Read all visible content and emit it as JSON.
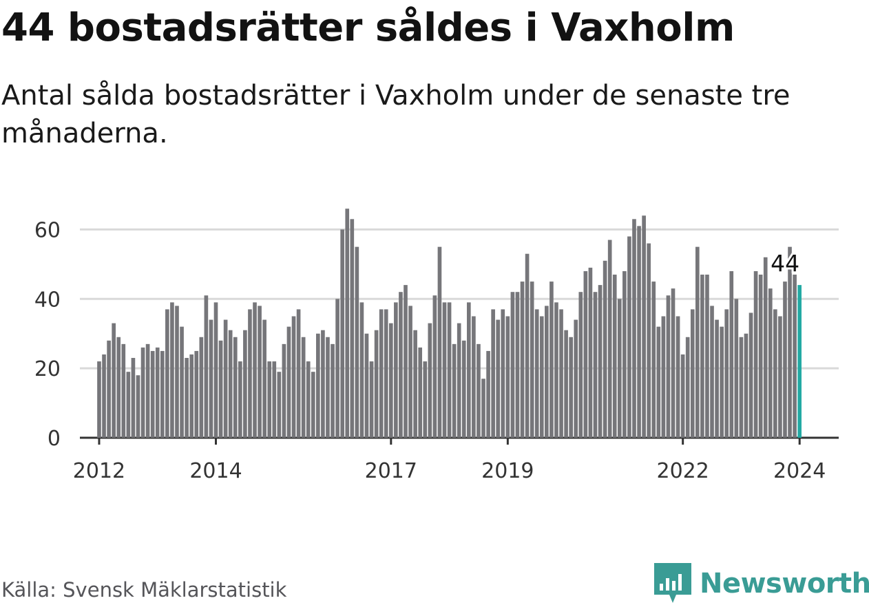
{
  "header": {
    "title": "44 bostadsrätter såldes i Vaxholm",
    "subtitle": "Antal sålda bostadsrätter i Vaxholm under de senaste tre månaderna."
  },
  "footer": {
    "source": "Källa: Svensk Mäklarstatistik",
    "brand": "Newsworthy",
    "brand_icon": "newsworthy-logo-icon"
  },
  "colors": {
    "bar": "#76767a",
    "highlight": "#23a9a3",
    "grid": "#d9d9d9",
    "axis": "#333333",
    "brand": "#3a9c95"
  },
  "chart_data": {
    "type": "bar",
    "title": "44 bostadsrätter såldes i Vaxholm",
    "xlabel": "",
    "ylabel": "",
    "ylim": [
      0,
      70
    ],
    "yticks": [
      0,
      20,
      40,
      60
    ],
    "xlim": [
      2011.67,
      2024.67
    ],
    "x_start": 2012,
    "x_step": 0.08333,
    "x_ticks": [
      {
        "value": 2012,
        "label": "2012"
      },
      {
        "value": 2014,
        "label": "2014"
      },
      {
        "value": 2017,
        "label": "2017"
      },
      {
        "value": 2019,
        "label": "2019"
      },
      {
        "value": 2022,
        "label": "2022"
      },
      {
        "value": 2024,
        "label": "2024"
      }
    ],
    "grid": true,
    "highlight_index": 144,
    "highlight_label": "44",
    "values": [
      22,
      24,
      28,
      33,
      29,
      27,
      19,
      23,
      18,
      26,
      27,
      25,
      26,
      25,
      37,
      39,
      38,
      32,
      23,
      24,
      25,
      29,
      41,
      34,
      39,
      28,
      34,
      31,
      29,
      22,
      31,
      37,
      39,
      38,
      34,
      22,
      22,
      19,
      27,
      32,
      35,
      37,
      29,
      22,
      19,
      30,
      31,
      29,
      27,
      40,
      60,
      66,
      63,
      55,
      39,
      30,
      22,
      31,
      37,
      37,
      33,
      39,
      42,
      44,
      38,
      31,
      26,
      22,
      33,
      41,
      55,
      39,
      39,
      27,
      33,
      28,
      39,
      35,
      27,
      17,
      25,
      37,
      34,
      37,
      35,
      42,
      42,
      45,
      53,
      45,
      37,
      35,
      38,
      45,
      39,
      37,
      31,
      29,
      34,
      42,
      48,
      49,
      42,
      44,
      51,
      57,
      47,
      40,
      48,
      58,
      63,
      61,
      64,
      56,
      45,
      32,
      35,
      41,
      43,
      35,
      24,
      29,
      37,
      55,
      47,
      47,
      38,
      34,
      32,
      37,
      48,
      40,
      29,
      30,
      36,
      48,
      47,
      52,
      43,
      37,
      35,
      45,
      55,
      47,
      44
    ]
  }
}
